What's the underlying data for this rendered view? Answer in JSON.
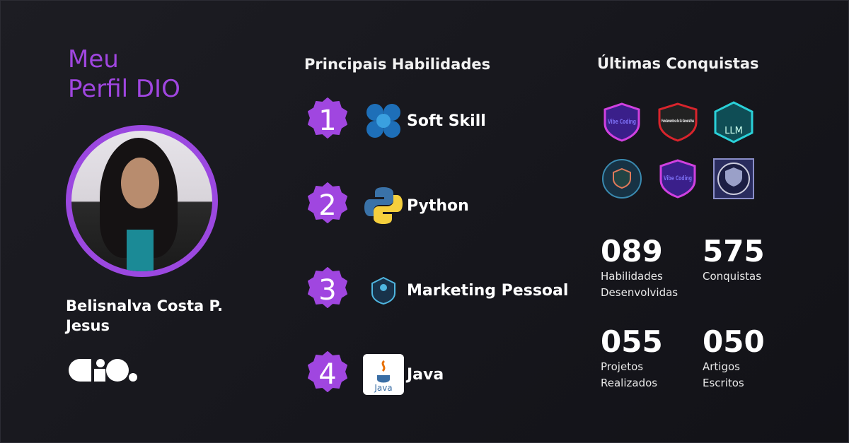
{
  "profile": {
    "title_line1": "Meu",
    "title_line2": "Perfil DIO",
    "name": "Belisnalva Costa P. Jesus",
    "logo_text": "dio."
  },
  "skills_section": {
    "heading": "Principais Habilidades",
    "items": [
      {
        "rank": "1",
        "label": "Soft Skill",
        "icon": "soft-skill-icon",
        "highlight": true
      },
      {
        "rank": "2",
        "label": "Python",
        "icon": "python-icon",
        "highlight": false
      },
      {
        "rank": "3",
        "label": "Marketing Pessoal",
        "icon": "marketing-icon",
        "highlight": false
      },
      {
        "rank": "4",
        "label": "Java",
        "icon": "java-icon",
        "highlight": false
      }
    ]
  },
  "achievements": {
    "heading": "Últimas Conquistas",
    "badges": [
      {
        "name": "vibe-coding-badge",
        "text": "Vibe Coding"
      },
      {
        "name": "fundamentos-ia-generativa-badge",
        "text": "Fundamentos de IA Generativa"
      },
      {
        "name": "llm-badge",
        "text": "LLM"
      },
      {
        "name": "shield-emblem-badge"
      },
      {
        "name": "vibe-coding-badge",
        "text": "Vibe Coding"
      },
      {
        "name": "tech-shield-badge"
      }
    ]
  },
  "stats": [
    {
      "value": "089",
      "label1": "Habilidades",
      "label2": "Desenvolvidas"
    },
    {
      "value": "575",
      "label1": "Conquistas",
      "label2": ""
    },
    {
      "value": "055",
      "label1": "Projetos",
      "label2": "Realizados"
    },
    {
      "value": "050",
      "label1": "Artigos",
      "label2": "Escritos"
    }
  ],
  "colors": {
    "accent": "#a046e0",
    "background": "#1a1a20"
  }
}
